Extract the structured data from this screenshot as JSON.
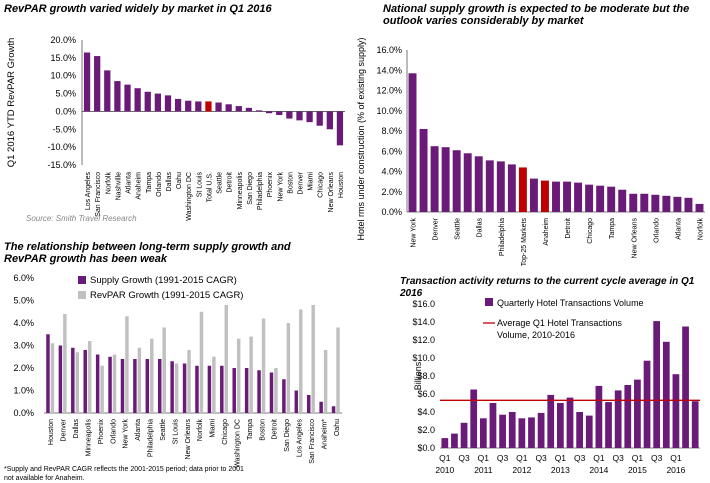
{
  "colors": {
    "purple": "#6a1b78",
    "red": "#c00000",
    "gray": "#c0c0c0",
    "avg_line": "#c00000"
  },
  "panels": {
    "revpar": {
      "title": "RevPAR growth varied widely by market in Q1 2016",
      "source": "Source: Smith Travel Research"
    },
    "supply": {
      "title": "National supply growth is expected to be moderate but the outlook varies considerably by market"
    },
    "relationship": {
      "title": "The relationship between long-term supply growth and RevPAR growth has been weak",
      "footnote": "*Supply and RevPAR CAGR reflects the 2001-2015 period; data prior to 2001 not available for Anaheim."
    },
    "transactions": {
      "title": "Transaction activity returns to the current cycle average in Q1 2016"
    }
  },
  "chart_data": [
    {
      "type": "bar",
      "title": "RevPAR growth varied widely by market in Q1 2016",
      "ylabel": "Q1 2016 YTD RevPAR Growth",
      "ylim": [
        -15,
        20
      ],
      "yticks": [
        "20.0%",
        "15.0%",
        "10.0%",
        "5.0%",
        "0.0%",
        "-5.0%",
        "-10.0%",
        "-15.0%"
      ],
      "categories": [
        "Los Angeles",
        "San Francisco",
        "Norfolk",
        "Nashville",
        "Atlanta",
        "Anaheim",
        "Tampa",
        "Orlando",
        "Dallas",
        "Oahu",
        "Washington DC",
        "St Louis",
        "Total U.S.",
        "Seattle",
        "Detroit",
        "Minneapolis",
        "San Diego",
        "Philadelphia",
        "Phoenix",
        "New York",
        "Boston",
        "Denver",
        "Miami",
        "Chicago",
        "New Orleans",
        "Houston"
      ],
      "values": [
        16.5,
        15.5,
        11.5,
        8.5,
        7.5,
        6.5,
        5.5,
        5.0,
        4.5,
        3.5,
        3.0,
        2.8,
        2.8,
        2.5,
        2.0,
        1.5,
        1.0,
        0.3,
        -0.5,
        -1.0,
        -2.0,
        -2.5,
        -3.0,
        -4.0,
        -5.0,
        -9.5
      ],
      "highlight": [
        "Total U.S."
      ]
    },
    {
      "type": "bar",
      "title": "National supply growth is expected to be moderate but the outlook varies considerably by market",
      "ylabel": "Hotel rms under construction (% of existing supply)",
      "ylim": [
        0,
        16
      ],
      "yticks": [
        "16.0%",
        "14.0%",
        "12.0%",
        "10.0%",
        "8.0%",
        "6.0%",
        "4.0%",
        "2.0%",
        "0.0%"
      ],
      "categories": [
        "New York",
        "",
        "Denver",
        "",
        "Seattle",
        "",
        "Dallas",
        "",
        "Philadelphia",
        "",
        "Top-25 Markets",
        "",
        "Anaheim",
        "",
        "Detroit",
        "",
        "Chicago",
        "",
        "Tampa",
        "",
        "New Orleans",
        "",
        "Orlando",
        "",
        "Atlanta",
        "",
        "Norfolk"
      ],
      "values": [
        13.7,
        8.2,
        6.5,
        6.4,
        6.1,
        5.8,
        5.5,
        5.1,
        5.0,
        4.7,
        4.4,
        3.3,
        3.1,
        3.0,
        3.0,
        2.9,
        2.7,
        2.6,
        2.5,
        2.2,
        1.8,
        1.8,
        1.7,
        1.6,
        1.5,
        1.4,
        0.8
      ],
      "highlight_index": [
        10,
        12
      ]
    },
    {
      "type": "bar",
      "title": "The relationship between long-term supply growth and RevPAR growth has been weak",
      "ylim": [
        0,
        6
      ],
      "yticks": [
        "6.0%",
        "5.0%",
        "4.0%",
        "3.0%",
        "2.0%",
        "1.0%",
        "0.0%"
      ],
      "categories": [
        "Houston",
        "Denver",
        "Dallas",
        "Minneapolis",
        "Phoenix",
        "Orlando",
        "New York",
        "Atlanta",
        "Philadelphia",
        "Seattle",
        "St Louis",
        "New Orleans",
        "Norfolk",
        "Miami",
        "Chicago",
        "Washington DC",
        "Tampa",
        "Boston",
        "Detroit",
        "San Diego",
        "Los Angeles",
        "San Francisco",
        "Anaheim*",
        "Oahu"
      ],
      "series": [
        {
          "name": "Supply Growth (1991-2015 CAGR)",
          "values": [
            3.5,
            3.0,
            2.9,
            2.8,
            2.6,
            2.5,
            2.4,
            2.4,
            2.4,
            2.4,
            2.3,
            2.2,
            2.1,
            2.1,
            2.1,
            2.0,
            2.0,
            1.9,
            1.8,
            1.5,
            1.0,
            0.8,
            0.5,
            0.3
          ]
        },
        {
          "name": "RevPAR Growth (1991-2015 CAGR)",
          "values": [
            3.1,
            4.4,
            2.7,
            3.2,
            2.1,
            2.6,
            4.3,
            2.9,
            3.3,
            3.8,
            2.2,
            2.8,
            4.5,
            2.5,
            4.8,
            3.3,
            3.4,
            4.2,
            2.0,
            4.0,
            4.6,
            4.8,
            2.8,
            3.8
          ]
        }
      ]
    },
    {
      "type": "bar",
      "title": "Transaction activity returns to the current cycle average in Q1 2016",
      "ylabel": "Billions",
      "ylim": [
        0,
        16
      ],
      "yticks": [
        "$16.0",
        "$14.0",
        "$12.0",
        "$10.0",
        "$8.0",
        "$6.0",
        "$4.0",
        "$2.0",
        "$0.0"
      ],
      "x_labels_top": [
        "Q1",
        "Q3",
        "Q1",
        "Q3",
        "Q1",
        "Q3",
        "Q1",
        "Q3",
        "Q1",
        "Q3",
        "Q1",
        "Q3",
        "Q1"
      ],
      "x_labels_bottom": [
        "2010",
        "2011",
        "2012",
        "2013",
        "2014",
        "2015",
        "2016"
      ],
      "series": [
        {
          "name": "Quarterly Hotel Transactions Volume",
          "values": [
            1.1,
            1.6,
            2.8,
            6.5,
            3.3,
            5.0,
            3.7,
            4.0,
            3.3,
            3.4,
            3.9,
            5.9,
            5.0,
            5.6,
            4.0,
            3.6,
            6.9,
            5.1,
            6.4,
            7.0,
            7.6,
            9.7,
            14.1,
            11.8,
            8.2,
            13.5,
            5.2
          ]
        },
        {
          "name": "Average Q1 Hotel Transactions Volume, 2010-2016",
          "value": 5.3
        }
      ]
    }
  ]
}
